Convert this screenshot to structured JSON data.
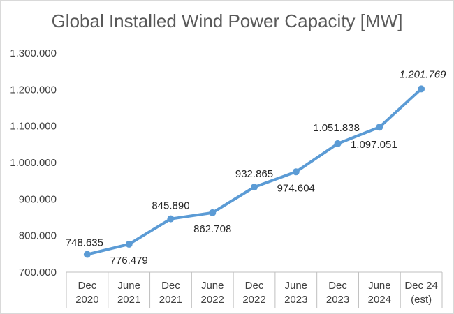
{
  "chart_data": {
    "type": "line",
    "title": "Global Installed Wind Power Capacity [MW]",
    "xlabel": "",
    "ylabel": "",
    "categories": [
      [
        "Dec",
        "2020"
      ],
      [
        "June",
        "2021"
      ],
      [
        "Dec",
        "2021"
      ],
      [
        "June",
        "2022"
      ],
      [
        "Dec",
        "2022"
      ],
      [
        "June",
        "2023"
      ],
      [
        "Dec",
        "2023"
      ],
      [
        "June",
        "2024"
      ],
      [
        "Dec 24",
        "(est)"
      ]
    ],
    "series": [
      {
        "values": [
          748635,
          776479,
          845890,
          862708,
          932865,
          974604,
          1051838,
          1097051,
          1201769
        ],
        "data_labels": [
          "748.635",
          "776.479",
          "845.890",
          "862.708",
          "932.865",
          "974.604",
          "1.051.838",
          "1.097.051",
          "1.201.769"
        ],
        "italic_label_index": 8
      }
    ],
    "ylim": [
      700000,
      1300000
    ],
    "yticks": [
      700000,
      800000,
      900000,
      1000000,
      1100000,
      1200000,
      1300000
    ],
    "ytick_labels": [
      "700.000",
      "800.000",
      "900.000",
      "1.000.000",
      "1.100.000",
      "1.200.000",
      "1.300.000"
    ],
    "grid": false,
    "legend": "none",
    "line_color": "#5b9bd5",
    "axis_color": "#bfbfbf"
  }
}
